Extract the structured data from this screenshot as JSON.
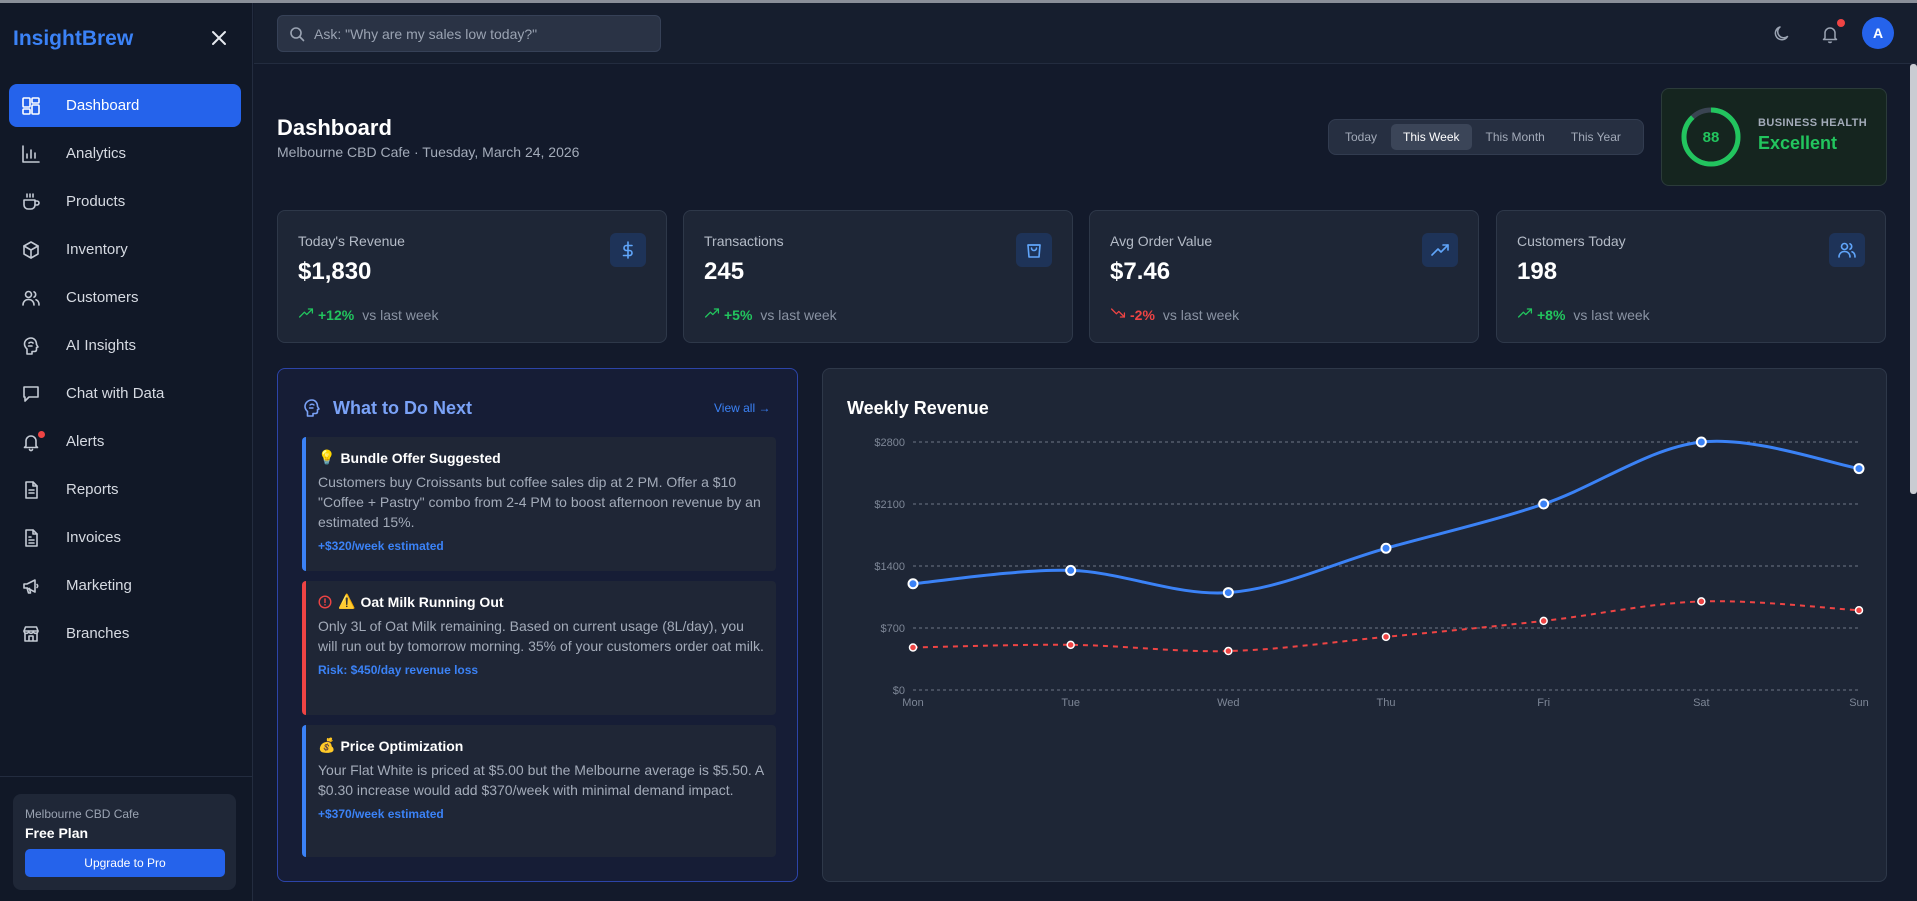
{
  "sidebar": {
    "brand": "InsightBrew",
    "items": [
      {
        "label": "Dashboard",
        "icon": "dashboard-icon",
        "active": true
      },
      {
        "label": "Analytics",
        "icon": "analytics-icon"
      },
      {
        "label": "Products",
        "icon": "coffee-cup-icon"
      },
      {
        "label": "Inventory",
        "icon": "box-icon"
      },
      {
        "label": "Customers",
        "icon": "users-icon"
      },
      {
        "label": "AI Insights",
        "icon": "brain-icon"
      },
      {
        "label": "Chat with Data",
        "icon": "chat-icon"
      },
      {
        "label": "Alerts",
        "icon": "bell-icon",
        "badge": true
      },
      {
        "label": "Reports",
        "icon": "report-icon"
      },
      {
        "label": "Invoices",
        "icon": "invoice-icon"
      },
      {
        "label": "Marketing",
        "icon": "megaphone-icon"
      },
      {
        "label": "Branches",
        "icon": "store-icon"
      }
    ],
    "plan": {
      "location": "Melbourne CBD Cafe",
      "name": "Free Plan",
      "upgrade_label": "Upgrade to Pro"
    }
  },
  "topbar": {
    "search_placeholder": "Ask: \"Why are my sales low today?\"",
    "avatar_initial": "A"
  },
  "header": {
    "title": "Dashboard",
    "subtitle": "Melbourne CBD Cafe · Tuesday, March 24, 2026",
    "ranges": [
      "Today",
      "This Week",
      "This Month",
      "This Year"
    ],
    "active_range": "This Week"
  },
  "health": {
    "score": "88",
    "score_fraction": 0.88,
    "label": "BUSINESS HEALTH",
    "status": "Excellent"
  },
  "kpis": [
    {
      "label": "Today's Revenue",
      "value": "$1,830",
      "delta": "+12%",
      "trend": "up",
      "vs": "vs last week",
      "icon": "dollar-icon"
    },
    {
      "label": "Transactions",
      "value": "245",
      "delta": "+5%",
      "trend": "up",
      "vs": "vs last week",
      "icon": "shopping-bag-icon"
    },
    {
      "label": "Avg Order Value",
      "value": "$7.46",
      "delta": "-2%",
      "trend": "down",
      "vs": "vs last week",
      "icon": "trending-up-icon"
    },
    {
      "label": "Customers Today",
      "value": "198",
      "delta": "+8%",
      "trend": "up",
      "vs": "vs last week",
      "icon": "users-icon"
    }
  ],
  "next": {
    "title": "What to Do Next",
    "view_all": "View all →",
    "items": [
      {
        "emoji": "💡",
        "title": "Bundle Offer Suggested",
        "body": "Customers buy Croissants but coffee sales dip at 2 PM. Offer a $10 \"Coffee + Pastry\" combo from 2-4 PM to boost afternoon revenue by an estimated 15%.",
        "foot": "+$320/week estimated",
        "severity": "info"
      },
      {
        "emoji": "⚠️",
        "title": "Oat Milk Running Out",
        "body": "Only 3L of Oat Milk remaining. Based on current usage (8L/day), you will run out by tomorrow morning. 35% of your customers order oat milk.",
        "foot": "Risk: $450/day revenue loss",
        "severity": "danger"
      },
      {
        "emoji": "💰",
        "title": "Price Optimization",
        "body": "Your Flat White is priced at $5.00 but the Melbourne average is $5.50. A $0.30 increase would add $370/week with minimal demand impact.",
        "foot": "+$370/week estimated",
        "severity": "info"
      }
    ]
  },
  "colors": {
    "accent": "#2563eb",
    "up": "#22c55e",
    "down": "#ef4444",
    "series_primary": "#3b82f6",
    "series_secondary": "#ef4444"
  },
  "chart_data": {
    "type": "line",
    "title": "Weekly Revenue",
    "categories": [
      "Mon",
      "Tue",
      "Wed",
      "Thu",
      "Fri",
      "Sat",
      "Sun"
    ],
    "yticks": [
      "$0",
      "$700",
      "$1400",
      "$2100",
      "$2800"
    ],
    "ylim": [
      0,
      2800
    ],
    "grid": true,
    "series": [
      {
        "values": [
          1200,
          1350,
          1100,
          1600,
          2100,
          2800,
          2500
        ],
        "style": "solid"
      },
      {
        "values": [
          480,
          510,
          440,
          600,
          780,
          1000,
          900
        ],
        "style": "dashed"
      }
    ]
  }
}
